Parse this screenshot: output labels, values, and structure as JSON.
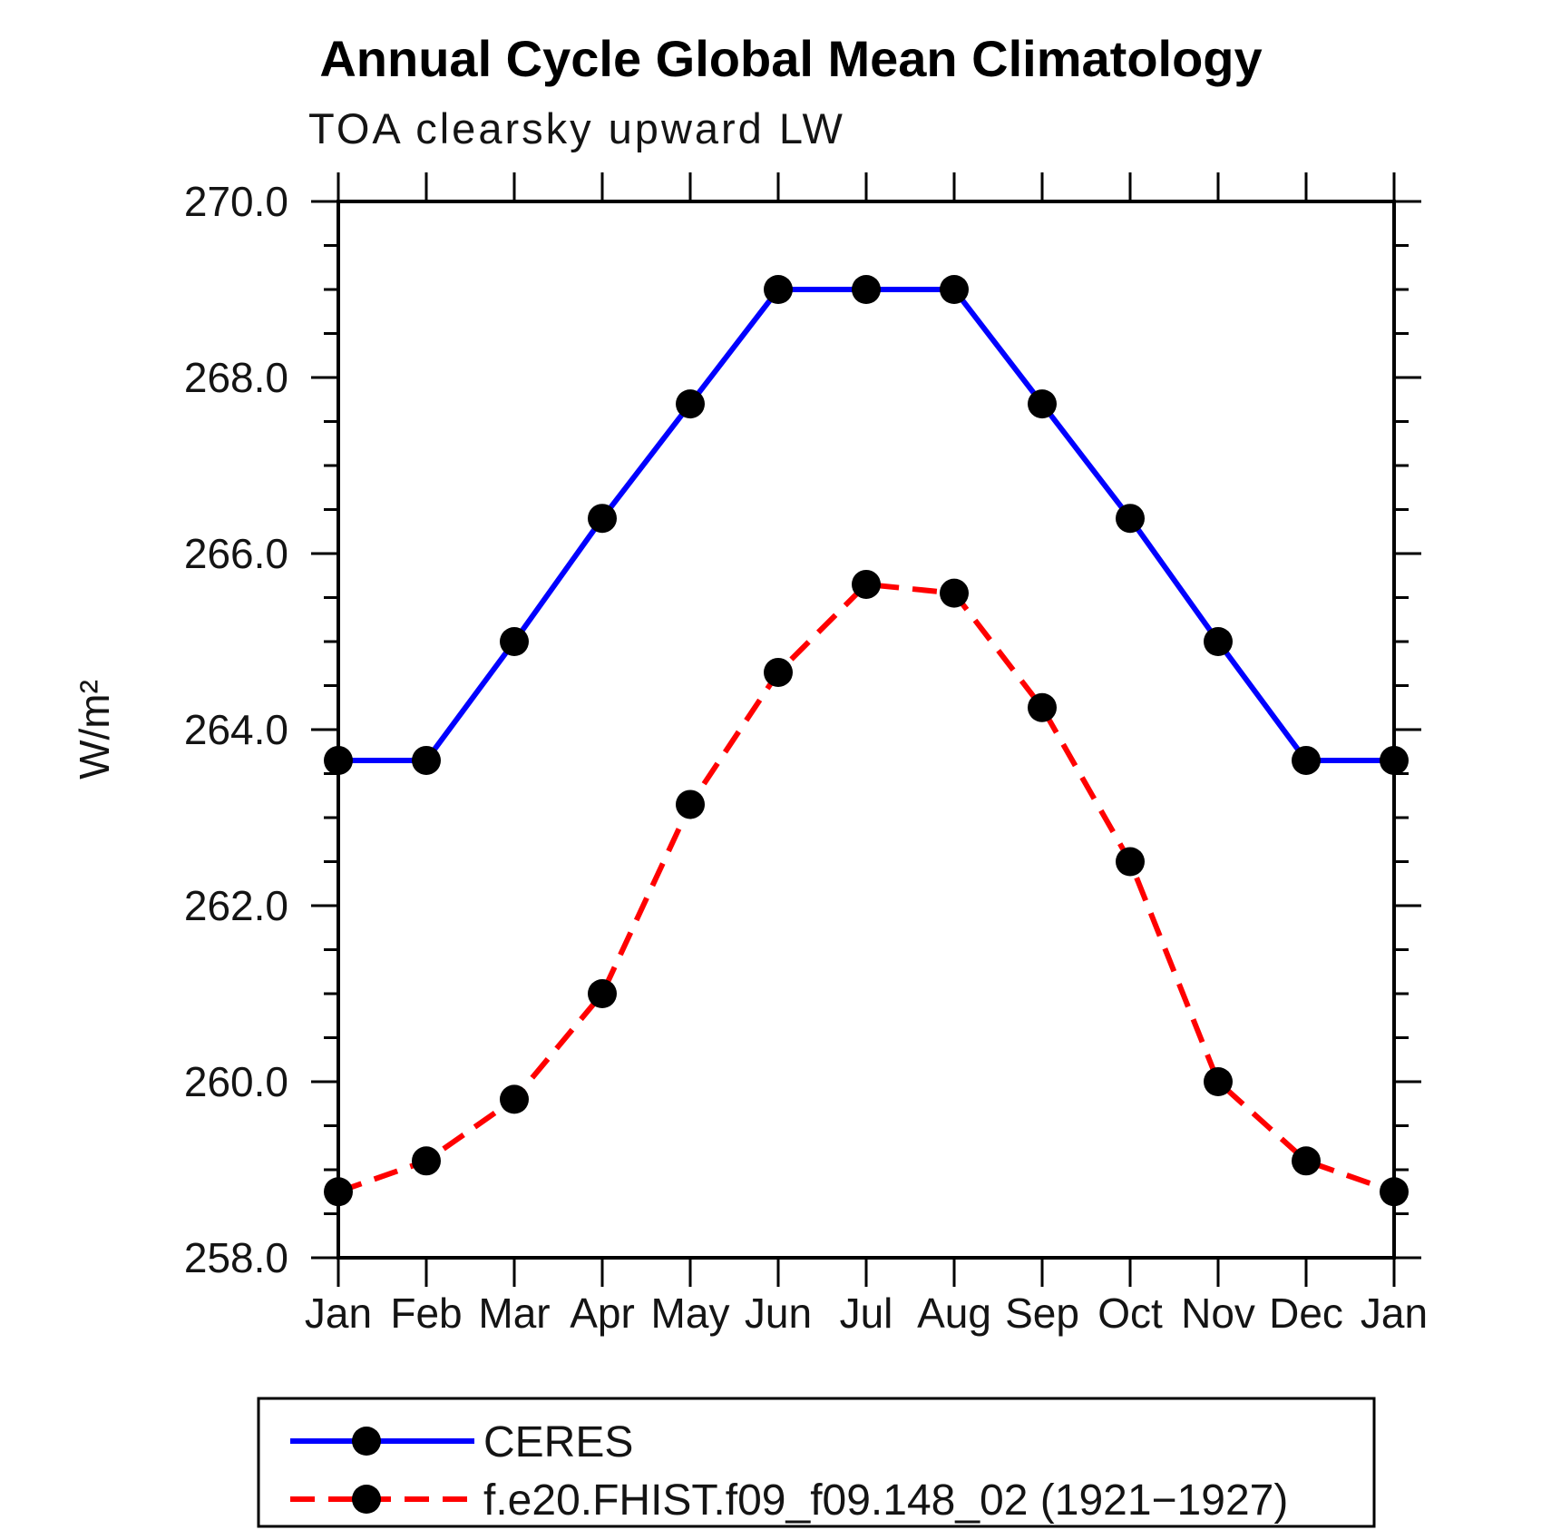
{
  "chart_data": {
    "type": "line",
    "title": "Annual Cycle Global Mean Climatology",
    "subtitle": "TOA clearsky upward LW",
    "ylabel": "W/m²",
    "categories": [
      "Jan",
      "Feb",
      "Mar",
      "Apr",
      "May",
      "Jun",
      "Jul",
      "Aug",
      "Sep",
      "Oct",
      "Nov",
      "Dec",
      "Jan"
    ],
    "ylim": [
      258.0,
      270.0
    ],
    "ytick_step": 2.0,
    "ytick_minor_step": 0.5,
    "ytick_labels": [
      "258.0",
      "260.0",
      "262.0",
      "264.0",
      "266.0",
      "268.0",
      "270.0"
    ],
    "grid": false,
    "legend_position": "bottom-left-box",
    "series": [
      {
        "name": "CERES",
        "color": "#0000ff",
        "line_style": "solid",
        "marker": "filled-circle",
        "marker_color": "#000000",
        "values": [
          263.65,
          263.65,
          265.0,
          266.4,
          267.7,
          269.0,
          269.0,
          269.0,
          267.7,
          266.4,
          265.0,
          263.65,
          263.65
        ]
      },
      {
        "name": "f.e20.FHIST.f09_f09.148_02 (1921−1927)",
        "color": "#ff0000",
        "line_style": "dashed",
        "marker": "filled-circle",
        "marker_color": "#000000",
        "values": [
          258.75,
          259.1,
          259.8,
          261.0,
          263.15,
          264.65,
          265.65,
          265.55,
          264.25,
          262.5,
          260.0,
          259.1,
          258.75
        ]
      }
    ]
  }
}
